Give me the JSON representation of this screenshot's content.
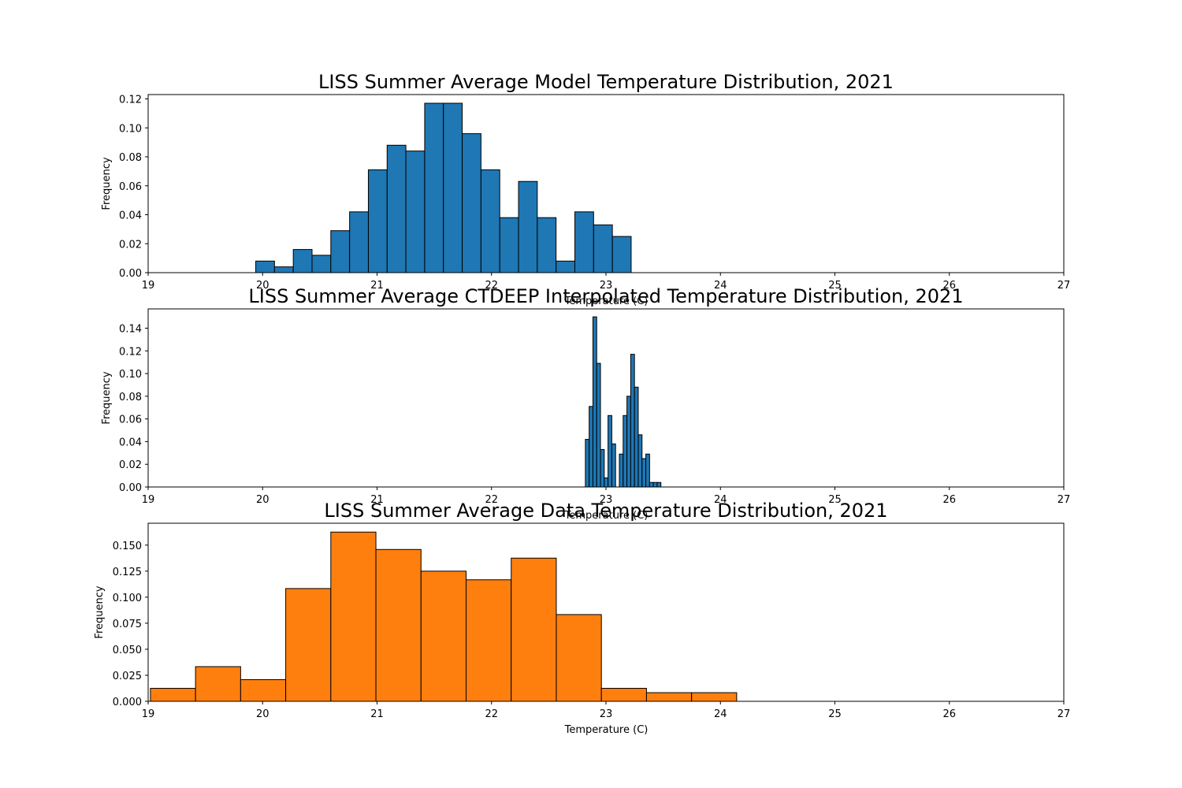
{
  "chart_data": [
    {
      "type": "bar",
      "title": "LISS Summer Average Model Temperature Distribution, 2021",
      "xlabel": "Temperature (C)",
      "ylabel": "Frequency",
      "xlim": [
        19,
        27
      ],
      "ylim": [
        0,
        0.123
      ],
      "xticks": [
        "19",
        "20",
        "21",
        "22",
        "23",
        "24",
        "25",
        "26",
        "27"
      ],
      "yticks": [
        "0.00",
        "0.02",
        "0.04",
        "0.06",
        "0.08",
        "0.10",
        "0.12"
      ],
      "color": "#1f77b4",
      "bin_edges": [
        19.94,
        20.104,
        20.268,
        20.432,
        20.596,
        20.76,
        20.924,
        21.088,
        21.252,
        21.416,
        21.58,
        21.744,
        21.908,
        22.072,
        22.236,
        22.4,
        22.564,
        22.728,
        22.892,
        23.056,
        23.22
      ],
      "values": [
        0.008,
        0.004,
        0.016,
        0.012,
        0.029,
        0.042,
        0.071,
        0.088,
        0.084,
        0.117,
        0.117,
        0.096,
        0.071,
        0.038,
        0.063,
        0.038,
        0.008,
        0.042,
        0.033,
        0.025
      ],
      "grid": false
    },
    {
      "type": "bar",
      "title": "LISS Summer Average CTDEEP Interpolated Temperature Distribution, 2021",
      "xlabel": "Temperature (C)",
      "ylabel": "Frequency",
      "xlim": [
        19,
        27
      ],
      "ylim": [
        0,
        0.157
      ],
      "xticks": [
        "19",
        "20",
        "21",
        "22",
        "23",
        "24",
        "25",
        "26",
        "27"
      ],
      "yticks": [
        "0.00",
        "0.02",
        "0.04",
        "0.06",
        "0.08",
        "0.10",
        "0.12",
        "0.14"
      ],
      "color": "#1f77b4",
      "bin_edges": [
        22.82,
        22.853,
        22.886,
        22.919,
        22.952,
        22.985,
        23.018,
        23.051,
        23.084,
        23.117,
        23.15,
        23.183,
        23.216,
        23.249,
        23.282,
        23.315,
        23.348,
        23.381,
        23.414,
        23.447,
        23.48
      ],
      "values": [
        0.042,
        0.071,
        0.15,
        0.109,
        0.033,
        0.008,
        0.063,
        0.038,
        0.0,
        0.029,
        0.063,
        0.08,
        0.117,
        0.088,
        0.046,
        0.025,
        0.029,
        0.004,
        0.004,
        0.004
      ],
      "grid": false
    },
    {
      "type": "bar",
      "title": "LISS Summer Average Data Temperature Distribution, 2021",
      "xlabel": "Temperature (C)",
      "ylabel": "Frequency",
      "xlim": [
        19,
        27
      ],
      "ylim": [
        0,
        0.171
      ],
      "xticks": [
        "19",
        "20",
        "21",
        "22",
        "23",
        "24",
        "25",
        "26",
        "27"
      ],
      "yticks": [
        "0.000",
        "0.025",
        "0.050",
        "0.075",
        "0.100",
        "0.125",
        "0.150"
      ],
      "color": "#ff7f0e",
      "bin_edges": [
        19.02,
        19.414,
        19.808,
        20.202,
        20.596,
        20.99,
        21.384,
        21.778,
        22.172,
        22.566,
        22.96,
        23.354,
        23.748,
        24.142
      ],
      "values": [
        0.0125,
        0.0333,
        0.0208,
        0.1083,
        0.1625,
        0.1458,
        0.125,
        0.1167,
        0.1375,
        0.0833,
        0.0125,
        0.0083,
        0.0083
      ],
      "grid": false
    }
  ]
}
